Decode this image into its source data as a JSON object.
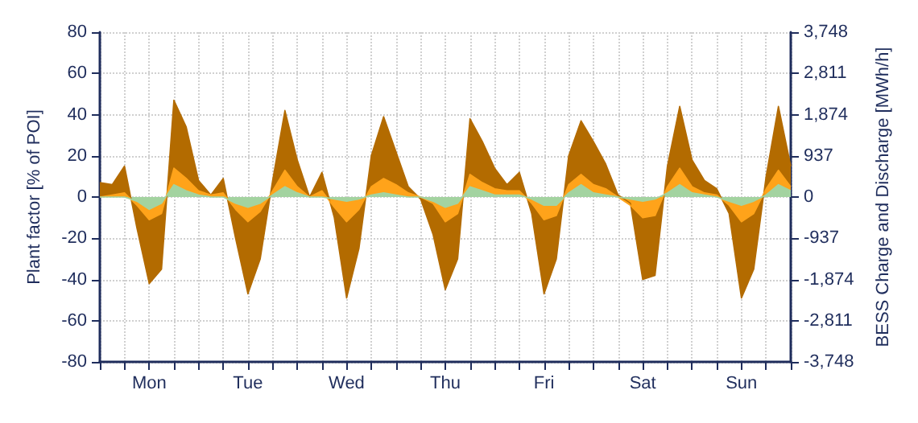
{
  "chart_data": {
    "type": "area",
    "ylabel": "Plant factor [% of POI]",
    "y2label": "BESS Charge and Discharge [MWh/h]",
    "categories": [
      null,
      null,
      null,
      null,
      "Mon",
      null,
      null,
      null,
      null,
      null,
      null,
      null,
      "Tue",
      null,
      null,
      null,
      null,
      null,
      null,
      null,
      "Wed",
      null,
      null,
      null,
      null,
      null,
      null,
      null,
      "Thu",
      null,
      null,
      null,
      null,
      null,
      null,
      null,
      "Fri",
      null,
      null,
      null,
      null,
      null,
      null,
      null,
      "Sat",
      null,
      null,
      null,
      null,
      null,
      null,
      null,
      "Sun",
      null,
      null,
      null,
      null
    ],
    "ylim": [
      -80,
      80
    ],
    "yticks": [
      -80,
      -60,
      -40,
      -20,
      0,
      20,
      40,
      60,
      80
    ],
    "y2lim": [
      -3748,
      3748
    ],
    "y2ticks": [
      {
        "value": -3748,
        "label": "-3,748"
      },
      {
        "value": -2811,
        "label": "-2,811"
      },
      {
        "value": -1874,
        "label": "-1,874"
      },
      {
        "value": -937,
        "label": "-937"
      },
      {
        "value": 0,
        "label": "0"
      },
      {
        "value": 937,
        "label": "937"
      },
      {
        "value": 1874,
        "label": "1,874"
      },
      {
        "value": 2811,
        "label": "2,811"
      },
      {
        "value": 3748,
        "label": "3,748"
      }
    ],
    "grid": true,
    "series": [
      {
        "color": "#b36b00",
        "values": [
          7,
          6,
          15,
          -15,
          -42,
          -35,
          47,
          34,
          8,
          1,
          9,
          -20,
          -47,
          -30,
          8,
          42,
          18,
          0,
          12,
          -10,
          -49,
          -25,
          20,
          39,
          22,
          5,
          -1,
          -18,
          -45,
          -30,
          38,
          27,
          14,
          6,
          12,
          -8,
          -47,
          -30,
          20,
          37,
          27,
          16,
          1,
          -3,
          -40,
          -38,
          15,
          44,
          18,
          8,
          4,
          -8,
          -49,
          -35,
          10,
          44,
          15
        ]
      },
      {
        "color": "#ffa31a",
        "values": [
          0,
          1,
          2,
          -4,
          -11,
          -8,
          14,
          9,
          3,
          1,
          2,
          -6,
          -12,
          -7,
          3,
          13,
          5,
          0,
          3,
          -5,
          -12,
          -6,
          5,
          9,
          6,
          2,
          0,
          -3,
          -12,
          -8,
          11,
          7,
          4,
          3,
          3,
          -3,
          -11,
          -9,
          6,
          11,
          6,
          4,
          0,
          -4,
          -10,
          -9,
          5,
          14,
          5,
          2,
          1,
          -4,
          -12,
          -8,
          4,
          13,
          5
        ]
      },
      {
        "color": "#a3d3a0",
        "values": [
          0,
          0,
          0,
          -2,
          -6,
          -3,
          6,
          3,
          1,
          0,
          0,
          -3,
          -5,
          -3,
          1,
          5,
          2,
          0,
          0,
          -1,
          -2,
          -1,
          1,
          2,
          1,
          0,
          0,
          -2,
          -5,
          -3,
          5,
          3,
          1,
          1,
          1,
          -1,
          -4,
          -4,
          2,
          6,
          2,
          1,
          0,
          -1,
          -2,
          -1,
          2,
          6,
          2,
          1,
          0,
          -2,
          -4,
          -2,
          1,
          6,
          3
        ]
      }
    ]
  }
}
